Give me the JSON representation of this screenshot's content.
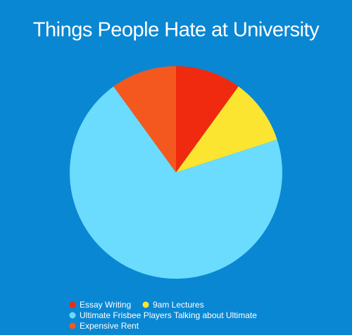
{
  "chart_data": {
    "type": "pie",
    "title": "Things People Hate at University",
    "categories": [
      "Essay Writing",
      "9am Lectures",
      "Ultimate Frisbee Players Talking about Ultimate",
      "Expensive Rent"
    ],
    "values": [
      10,
      10,
      70,
      10
    ],
    "colors": [
      "#f02a0e",
      "#fbe531",
      "#6bdcfd",
      "#f4581e"
    ]
  }
}
